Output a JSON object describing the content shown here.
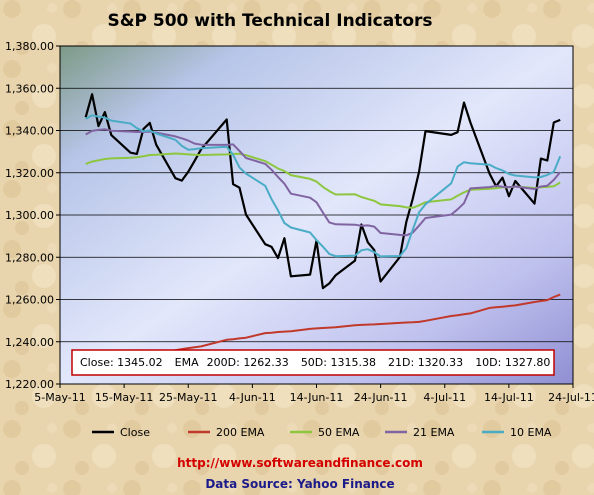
{
  "chart_data": {
    "type": "line",
    "title": "S&P 500 with Technical Indicators",
    "xlabel": "",
    "ylabel": "",
    "ylim": [
      1220,
      1380
    ],
    "y_ticks": [
      "1,220.00",
      "1,240.00",
      "1,260.00",
      "1,280.00",
      "1,300.00",
      "1,320.00",
      "1,340.00",
      "1,360.00",
      "1,380.00"
    ],
    "x_range": [
      "2011-05-05",
      "2011-07-24"
    ],
    "x_tick_labels": [
      "5-May-11",
      "15-May-11",
      "25-May-11",
      "4-Jun-11",
      "14-Jun-11",
      "24-Jun-11",
      "4-Jul-11",
      "14-Jul-11",
      "24-Jul-11"
    ],
    "x_tick_dates": [
      "2011-05-05",
      "2011-05-15",
      "2011-05-25",
      "2011-06-04",
      "2011-06-14",
      "2011-06-24",
      "2011-07-04",
      "2011-07-14",
      "2011-07-24"
    ],
    "grid": "horizontal",
    "legend_position": "bottom",
    "dates": [
      "2011-05-09",
      "2011-05-10",
      "2011-05-11",
      "2011-05-12",
      "2011-05-13",
      "2011-05-16",
      "2011-05-17",
      "2011-05-18",
      "2011-05-19",
      "2011-05-20",
      "2011-05-23",
      "2011-05-24",
      "2011-05-25",
      "2011-05-26",
      "2011-05-27",
      "2011-05-31",
      "2011-06-01",
      "2011-06-02",
      "2011-06-03",
      "2011-06-06",
      "2011-06-07",
      "2011-06-08",
      "2011-06-09",
      "2011-06-10",
      "2011-06-13",
      "2011-06-14",
      "2011-06-15",
      "2011-06-16",
      "2011-06-17",
      "2011-06-20",
      "2011-06-21",
      "2011-06-22",
      "2011-06-23",
      "2011-06-24",
      "2011-06-27",
      "2011-06-28",
      "2011-06-29",
      "2011-06-30",
      "2011-07-01",
      "2011-07-05",
      "2011-07-06",
      "2011-07-07",
      "2011-07-08",
      "2011-07-11",
      "2011-07-12",
      "2011-07-13",
      "2011-07-14",
      "2011-07-15",
      "2011-07-18",
      "2011-07-19",
      "2011-07-20",
      "2011-07-21",
      "2011-07-22"
    ],
    "series": [
      {
        "name": "Close",
        "color": "#000000",
        "values": [
          1346.3,
          1357.2,
          1342.1,
          1348.7,
          1337.8,
          1329.5,
          1328.9,
          1340.7,
          1343.6,
          1333.3,
          1317.4,
          1316.3,
          1320.5,
          1325.7,
          1331.1,
          1345.2,
          1314.6,
          1312.9,
          1300.2,
          1286.2,
          1284.9,
          1279.6,
          1289.0,
          1271.0,
          1271.8,
          1287.9,
          1265.4,
          1267.6,
          1271.5,
          1278.4,
          1295.5,
          1287.1,
          1283.5,
          1268.5,
          1280.1,
          1296.7,
          1307.6,
          1320.6,
          1339.7,
          1337.9,
          1339.2,
          1353.2,
          1343.8,
          1319.5,
          1313.6,
          1317.7,
          1308.9,
          1316.1,
          1305.4,
          1326.7,
          1325.8,
          1343.8,
          1345.0
        ]
      },
      {
        "name": "200 EMA",
        "color": "#c0392b",
        "values": [
          1233.0,
          1233.1,
          1233.2,
          1233.3,
          1233.4,
          1233.6,
          1233.7,
          1233.9,
          1234.1,
          1234.3,
          1236.0,
          1236.5,
          1237.0,
          1237.4,
          1237.8,
          1240.9,
          1241.2,
          1241.6,
          1241.9,
          1244.1,
          1244.3,
          1244.6,
          1244.8,
          1245.0,
          1246.1,
          1246.3,
          1246.5,
          1246.7,
          1246.9,
          1247.8,
          1248.0,
          1248.1,
          1248.2,
          1248.4,
          1248.9,
          1249.1,
          1249.2,
          1249.4,
          1249.9,
          1252.2,
          1252.5,
          1253.0,
          1253.4,
          1256.0,
          1256.3,
          1256.6,
          1256.9,
          1257.2,
          1258.8,
          1259.3,
          1259.7,
          1261.2,
          1262.3
        ]
      },
      {
        "name": "50 EMA",
        "color": "#8dc63f",
        "values": [
          1324.2,
          1325.3,
          1325.9,
          1326.5,
          1326.8,
          1327.1,
          1327.3,
          1327.8,
          1328.4,
          1328.5,
          1329.1,
          1328.9,
          1328.7,
          1328.5,
          1328.4,
          1328.7,
          1328.9,
          1328.9,
          1328.3,
          1325.5,
          1323.8,
          1322.0,
          1320.8,
          1318.9,
          1317.1,
          1315.8,
          1313.3,
          1311.3,
          1309.7,
          1309.8,
          1308.5,
          1307.6,
          1306.7,
          1305.0,
          1304.2,
          1303.6,
          1303.4,
          1304.6,
          1306.0,
          1307.4,
          1309.1,
          1310.7,
          1312.0,
          1312.4,
          1312.7,
          1313.1,
          1313.1,
          1313.5,
          1312.8,
          1313.1,
          1313.3,
          1313.6,
          1315.4
        ]
      },
      {
        "name": "21 EMA",
        "color": "#8064a2",
        "values": [
          1338.1,
          1339.8,
          1340.3,
          1340.6,
          1339.9,
          1339.5,
          1339.3,
          1339.3,
          1339.5,
          1339.0,
          1337.2,
          1336.3,
          1335.2,
          1333.8,
          1333.3,
          1333.2,
          1333.4,
          1330.3,
          1327.0,
          1324.2,
          1321.4,
          1318.0,
          1314.8,
          1310.1,
          1308.2,
          1306.0,
          1301.2,
          1296.5,
          1295.6,
          1295.4,
          1294.9,
          1295.1,
          1294.5,
          1291.5,
          1290.6,
          1290.4,
          1291.6,
          1295.0,
          1298.6,
          1300.2,
          1302.7,
          1305.6,
          1312.6,
          1313.2,
          1313.8,
          1313.4,
          1313.2,
          1313.5,
          1312.3,
          1313.5,
          1313.8,
          1316.6,
          1320.3
        ]
      },
      {
        "name": "10 EMA",
        "color": "#4bacc6",
        "values": [
          1345.5,
          1347.2,
          1346.6,
          1346.1,
          1344.7,
          1343.3,
          1341.1,
          1339.6,
          1340.0,
          1338.6,
          1335.6,
          1332.7,
          1330.9,
          1331.2,
          1331.6,
          1332.3,
          1328.5,
          1322.5,
          1319.6,
          1313.8,
          1307.5,
          1302.2,
          1296.2,
          1294.1,
          1291.7,
          1288.1,
          1285.0,
          1281.6,
          1280.5,
          1280.8,
          1283.3,
          1283.8,
          1282.4,
          1280.4,
          1280.6,
          1284.3,
          1293.0,
          1301.3,
          1305.1,
          1315.0,
          1322.9,
          1325.0,
          1324.5,
          1323.8,
          1322.2,
          1321.1,
          1319.4,
          1318.7,
          1317.8,
          1318.0,
          1319.0,
          1320.4,
          1327.8
        ]
      }
    ],
    "summary": {
      "close_label": "Close:",
      "close_value": "1345.02",
      "ema_label": "EMA",
      "d200_label": "200D:",
      "d200_value": "1262.33",
      "d50_label": "50D:",
      "d50_value": "1315.38",
      "d21_label": "21D:",
      "d21_value": "1320.33",
      "d10_label": "10D:",
      "d10_value": "1327.80"
    }
  },
  "footer": {
    "url": "http://www.softwareandfinance.com",
    "source": "Data Source: Yahoo Finance"
  },
  "colors": {
    "background": "#e9d7b4",
    "plot_border": "#000000",
    "url": "#d40000",
    "source": "#1a1a8a"
  }
}
